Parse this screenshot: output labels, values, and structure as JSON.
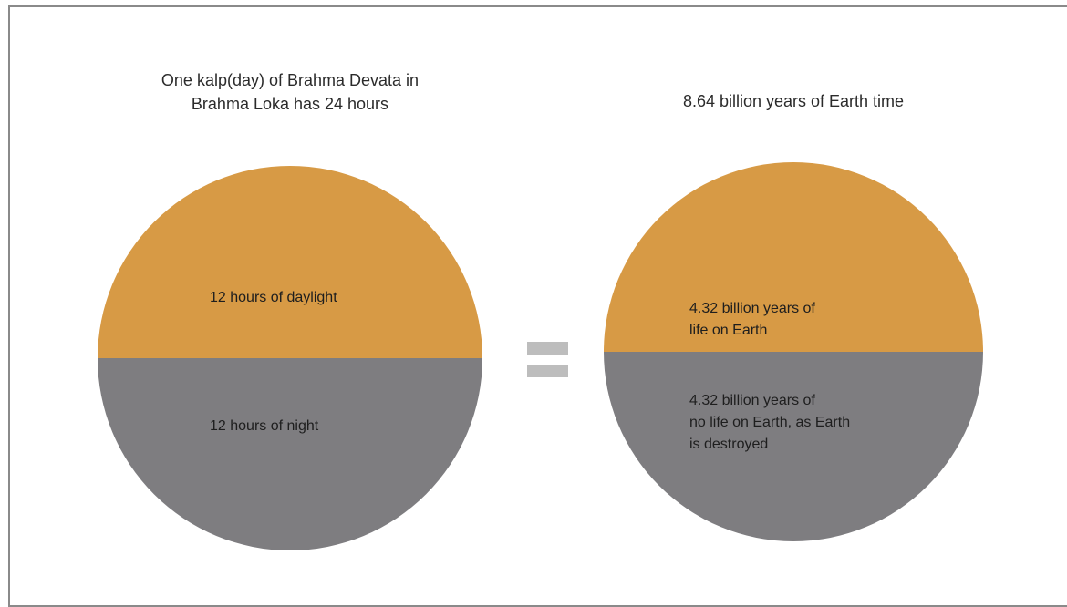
{
  "colors": {
    "day": "#D79A45",
    "night": "#7E7D80",
    "equals_sign": "#BDBDBD",
    "frame": "#8A8A8A",
    "text": "#2B2B2B"
  },
  "left": {
    "title": "One kalp(day) of Brahma Devata in\nBrahma Loka has 24 hours",
    "top_label": "12 hours of daylight",
    "bottom_label": "12 hours of night"
  },
  "right": {
    "title": "8.64 billion years of Earth time",
    "top_label": "4.32 billion years of\nlife on Earth",
    "bottom_label": "4.32 billion years of\nno life on Earth, as Earth\nis destroyed"
  }
}
